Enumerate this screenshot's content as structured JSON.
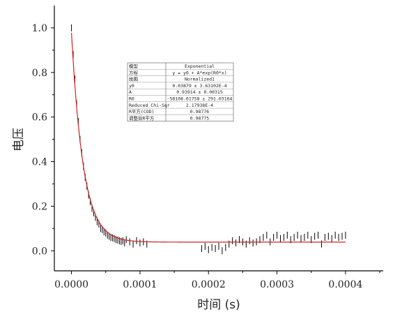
{
  "chart_data": {
    "type": "scatter",
    "title": "",
    "xlabel": "时间 (s)",
    "ylabel": "电压",
    "xlim": [
      -2.5e-05,
      0.000455
    ],
    "ylim": [
      -0.09,
      1.1
    ],
    "x_ticks": [
      "0.0000",
      "0.0001",
      "0.0002",
      "0.0003",
      "0.0004"
    ],
    "y_ticks": [
      "0.0",
      "0.2",
      "0.4",
      "0.6",
      "0.8",
      "1.0"
    ],
    "grid": false,
    "series": [
      {
        "kind": "data-scatter",
        "color": "#000000",
        "x": [
          0.0,
          2.5e-06,
          5e-06,
          7.5e-06,
          1e-05,
          1.25e-05,
          1.5e-05,
          1.75e-05,
          2e-05,
          2.25e-05,
          2.5e-05,
          2.75e-05,
          3e-05,
          3.25e-05,
          3.5e-05,
          3.75e-05,
          4e-05,
          4.25e-05,
          4.5e-05,
          4.75e-05,
          5e-05,
          5.25e-05,
          5.5e-05,
          5.75e-05,
          6e-05,
          6.25e-05,
          6.5e-05,
          6.75e-05,
          7e-05,
          7.25e-05,
          7.5e-05,
          7.75e-05,
          8e-05,
          8.5e-05,
          9e-05,
          9.5e-05,
          0.0001,
          0.000105,
          0.00011,
          0.00019,
          0.000195,
          0.0002,
          0.000205,
          0.00021,
          0.000215,
          0.00022,
          0.000225,
          0.00023,
          0.000235,
          0.00024,
          0.000245,
          0.00025,
          0.000255,
          0.00026,
          0.000265,
          0.00027,
          0.000275,
          0.00028,
          0.000285,
          0.00029,
          0.000295,
          0.0003,
          0.000305,
          0.00031,
          0.000315,
          0.00032,
          0.000325,
          0.00033,
          0.000335,
          0.00034,
          0.000345,
          0.00035,
          0.000355,
          0.00036,
          0.000365,
          0.00037,
          0.000375,
          0.00038,
          0.000385,
          0.00039,
          0.000395,
          0.0004
        ],
        "y": [
          1.0,
          0.88,
          0.77,
          0.66,
          0.58,
          0.5,
          0.44,
          0.38,
          0.33,
          0.29,
          0.25,
          0.22,
          0.19,
          0.17,
          0.15,
          0.13,
          0.12,
          0.1,
          0.095,
          0.085,
          0.08,
          0.07,
          0.065,
          0.06,
          0.058,
          0.055,
          0.05,
          0.048,
          0.045,
          0.042,
          0.045,
          0.035,
          0.05,
          0.04,
          0.03,
          0.045,
          0.035,
          0.04,
          0.03,
          0.01,
          0.02,
          0.005,
          0.015,
          0.01,
          0.02,
          0.0,
          0.015,
          0.03,
          0.045,
          0.035,
          0.05,
          0.04,
          0.03,
          0.045,
          0.035,
          0.04,
          0.05,
          0.06,
          0.07,
          0.04,
          0.06,
          0.07,
          0.055,
          0.06,
          0.07,
          0.05,
          0.06,
          0.07,
          0.055,
          0.06,
          0.07,
          0.05,
          0.065,
          0.07,
          0.03,
          0.06,
          0.065,
          0.055,
          0.07,
          0.06,
          0.065,
          0.07
        ]
      },
      {
        "kind": "fit-curve",
        "color": "#cc2222",
        "equation": "y = y0 + A*exp(R0*x)",
        "params": {
          "y0": 0.03879,
          "A": 0.93914,
          "R0": -58108.01758
        },
        "x_range": [
          0.0,
          0.0004
        ]
      }
    ],
    "fit_table": [
      [
        "模型",
        "Exponential"
      ],
      [
        "方程",
        "y = y0 + A*exp(R0*x)"
      ],
      [
        "绘图",
        "Normalized1"
      ],
      [
        "y0",
        "0.03879 ± 3.63102E-4"
      ],
      [
        "A",
        "0.93914 ± 0.00315"
      ],
      [
        "R0",
        "-58108.01758 ± 291.03164"
      ],
      [
        "Reduced Chi-Sqr",
        "2.17938E-4"
      ],
      [
        "R平方(COD)",
        "0.98776"
      ],
      [
        "调整后R平方",
        "0.98775"
      ]
    ],
    "fit_table_placement": "upper-middle"
  }
}
